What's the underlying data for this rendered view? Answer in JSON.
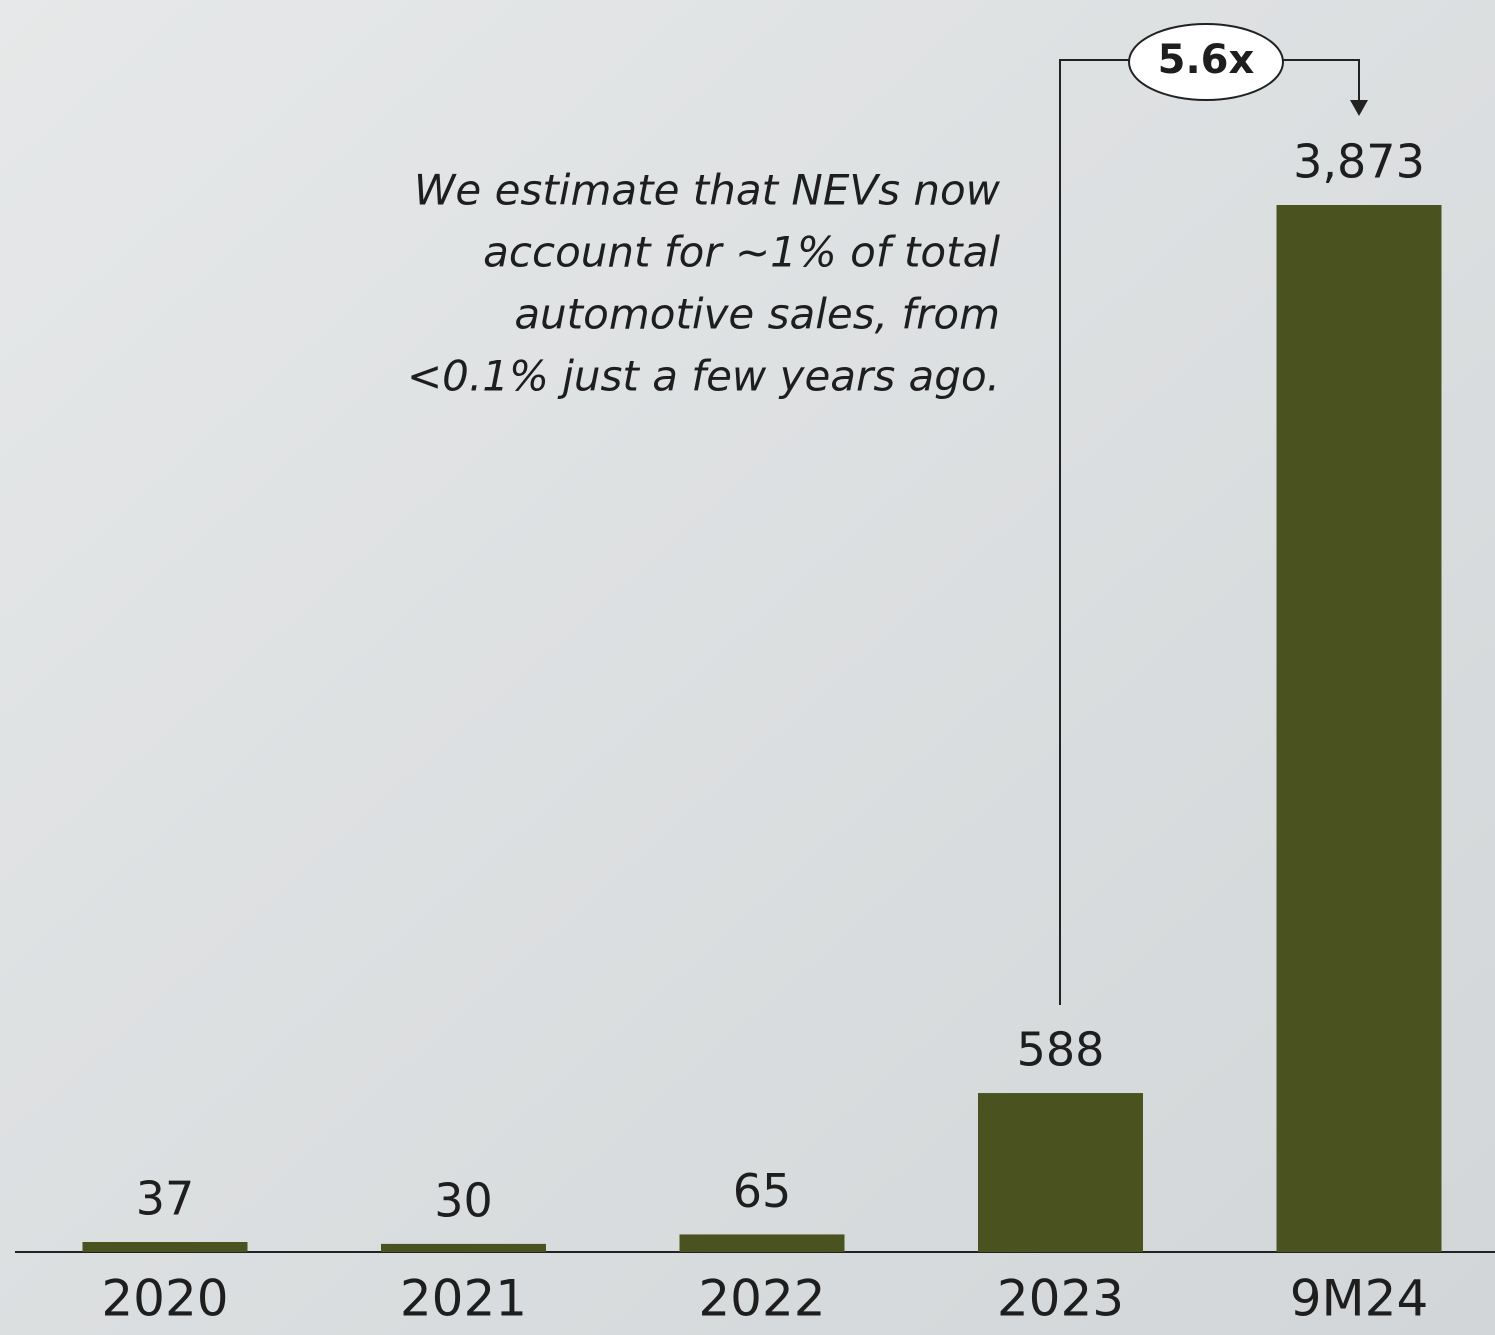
{
  "chart_data": {
    "type": "bar",
    "categories": [
      "2020",
      "2021",
      "2022",
      "2023",
      "9M24"
    ],
    "values": [
      37,
      30,
      65,
      588,
      3873
    ],
    "value_labels": [
      "37",
      "30",
      "65",
      "588",
      "3,873"
    ],
    "color": "#4a5320",
    "annotation": "5.6x",
    "note_lines": [
      "We estimate that NEVs now",
      "account for ~1% of total",
      "automotive sales, from",
      "<0.1% just a few years ago."
    ]
  }
}
